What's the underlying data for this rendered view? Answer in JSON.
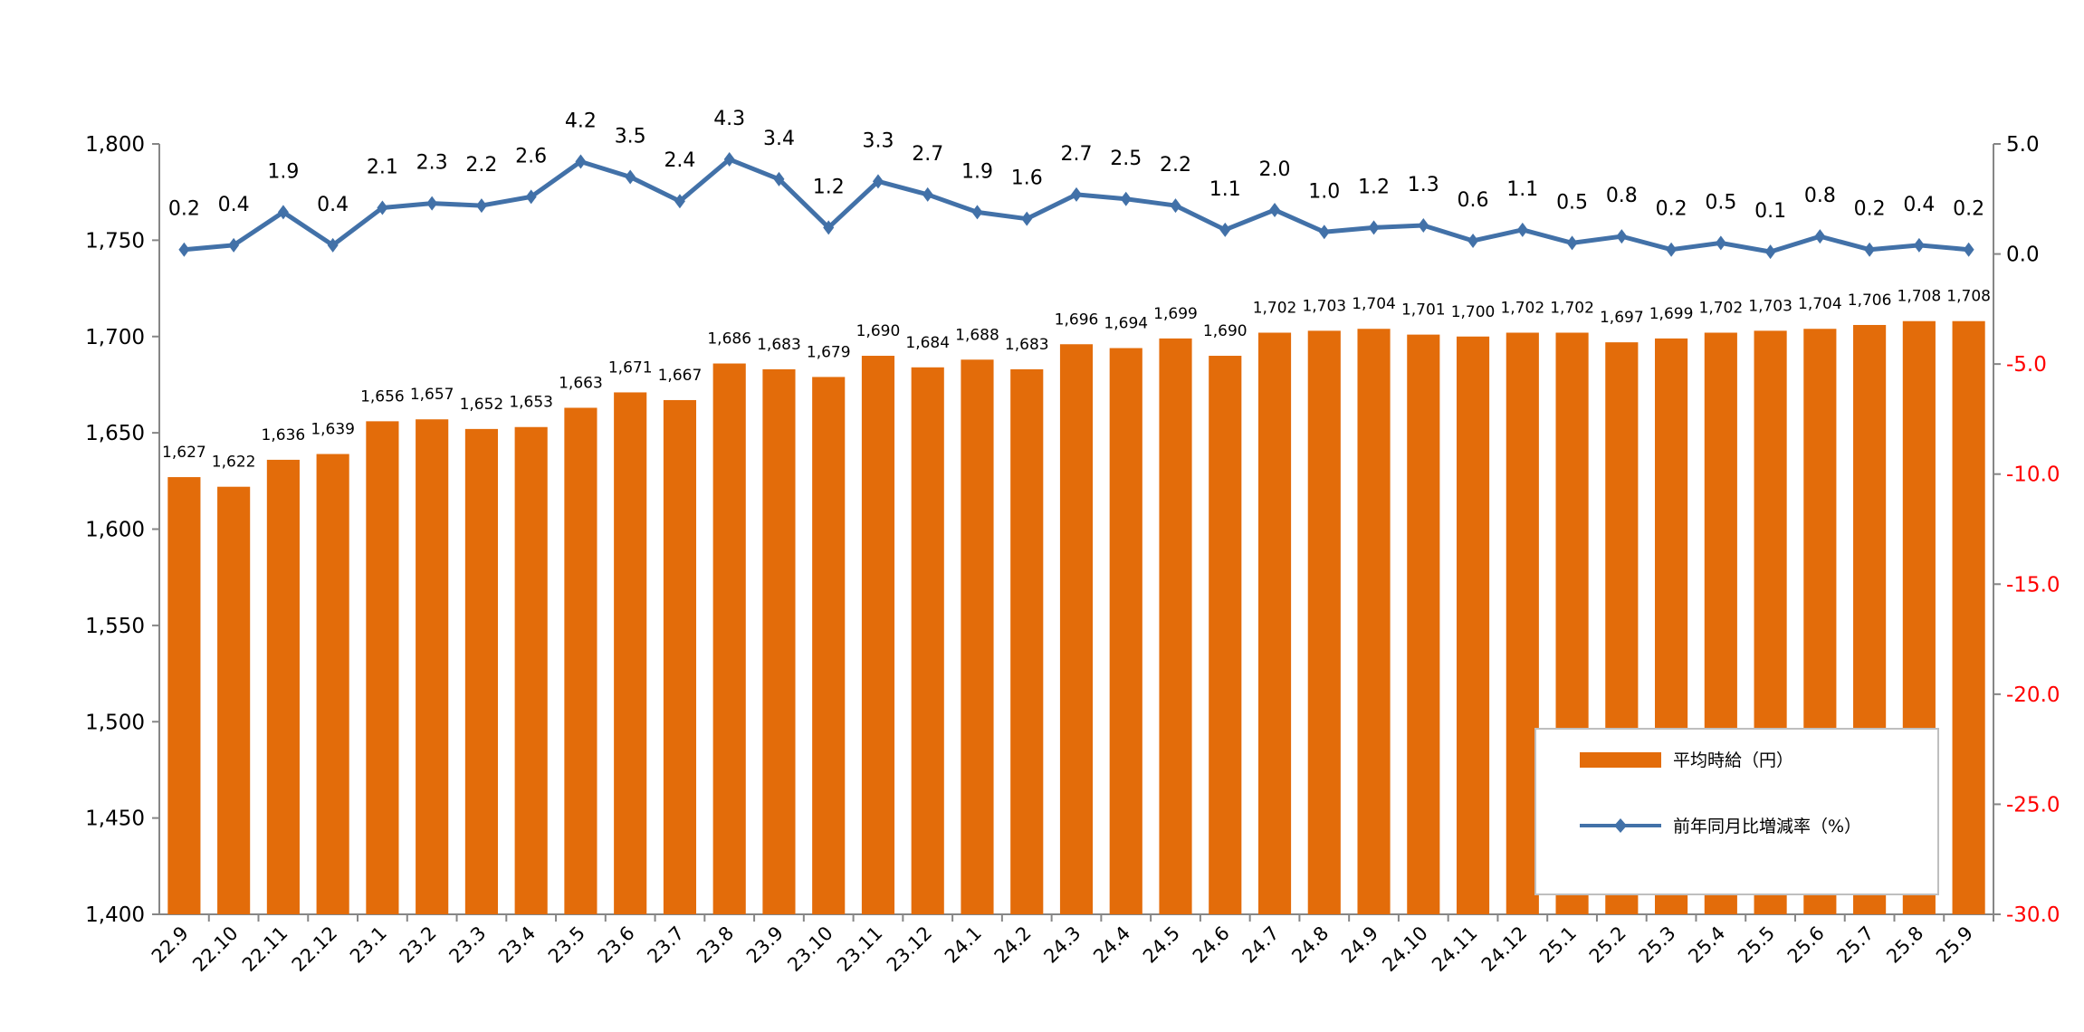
{
  "chart_data": {
    "type": "bar+line",
    "categories": [
      "22.9",
      "22.10",
      "22.11",
      "22.12",
      "23.1",
      "23.2",
      "23.3",
      "23.4",
      "23.5",
      "23.6",
      "23.7",
      "23.8",
      "23.9",
      "23.10",
      "23.11",
      "23.12",
      "24.1",
      "24.2",
      "24.3",
      "24.4",
      "24.5",
      "24.6",
      "24.7",
      "24.8",
      "24.9",
      "24.10",
      "24.11",
      "24.12",
      "25.1",
      "25.2",
      "25.3",
      "25.4",
      "25.5",
      "25.6",
      "25.7",
      "25.8",
      "25.9"
    ],
    "series": [
      {
        "name": "平均時給（円）",
        "type": "bar",
        "axis": "left",
        "color": "#e36c0a",
        "values": [
          1627,
          1622,
          1636,
          1639,
          1656,
          1657,
          1652,
          1653,
          1663,
          1671,
          1667,
          1686,
          1683,
          1679,
          1690,
          1684,
          1688,
          1683,
          1696,
          1694,
          1699,
          1690,
          1702,
          1703,
          1704,
          1701,
          1700,
          1702,
          1702,
          1697,
          1699,
          1702,
          1703,
          1704,
          1706,
          1708,
          1708
        ],
        "labels": [
          "1,627",
          "1,622",
          "1,636",
          "1,639",
          "1,656",
          "1,657",
          "1,652",
          "1,653",
          "1,663",
          "1,671",
          "1,667",
          "1,686",
          "1,683",
          "1,679",
          "1,690",
          "1,684",
          "1,688",
          "1,683",
          "1,696",
          "1,694",
          "1,699",
          "1,690",
          "1,702",
          "1,703",
          "1,704",
          "1,701",
          "1,700",
          "1,702",
          "1,702",
          "1,697",
          "1,699",
          "1,702",
          "1,703",
          "1,704",
          "1,706",
          "1,708",
          "1,708"
        ]
      },
      {
        "name": "前年同月比増減率（%）",
        "type": "line",
        "axis": "right",
        "color": "#4271a8",
        "values": [
          0.2,
          0.4,
          1.9,
          0.4,
          2.1,
          2.3,
          2.2,
          2.6,
          4.2,
          3.5,
          2.4,
          4.3,
          3.4,
          1.2,
          3.3,
          2.7,
          1.9,
          1.6,
          2.7,
          2.5,
          2.2,
          1.1,
          2.0,
          1.0,
          1.2,
          1.3,
          0.6,
          1.1,
          0.5,
          0.8,
          0.2,
          0.5,
          0.1,
          0.8,
          0.2,
          0.4,
          0.2
        ],
        "labels": [
          "0.2",
          "0.4",
          "1.9",
          "0.4",
          "2.1",
          "2.3",
          "2.2",
          "2.6",
          "4.2",
          "3.5",
          "2.4",
          "4.3",
          "3.4",
          "1.2",
          "3.3",
          "2.7",
          "1.9",
          "1.6",
          "2.7",
          "2.5",
          "2.2",
          "1.1",
          "2.0",
          "1.0",
          "1.2",
          "1.3",
          "0.6",
          "1.1",
          "0.5",
          "0.8",
          "0.2",
          "0.5",
          "0.1",
          "0.8",
          "0.2",
          "0.4",
          "0.2"
        ]
      }
    ],
    "y_left": {
      "lim": [
        1400,
        1800
      ],
      "ticks": [
        "1,400",
        "1,450",
        "1,500",
        "1,550",
        "1,600",
        "1,650",
        "1,700",
        "1,750",
        "1,800"
      ],
      "tick_values": [
        1400,
        1450,
        1500,
        1550,
        1600,
        1650,
        1700,
        1750,
        1800
      ]
    },
    "y_right": {
      "lim": [
        -30,
        5
      ],
      "ticks": [
        "-30.0",
        "-25.0",
        "-20.0",
        "-15.0",
        "-10.0",
        "-5.0",
        "0.0",
        "5.0"
      ],
      "tick_values": [
        -30,
        -25,
        -20,
        -15,
        -10,
        -5,
        0,
        5
      ],
      "negative_color": "#ff0000"
    },
    "legend": {
      "placement": "bottom-right",
      "items": [
        "平均時給（円）",
        "前年同月比増減率（%）"
      ]
    },
    "grid": false
  }
}
